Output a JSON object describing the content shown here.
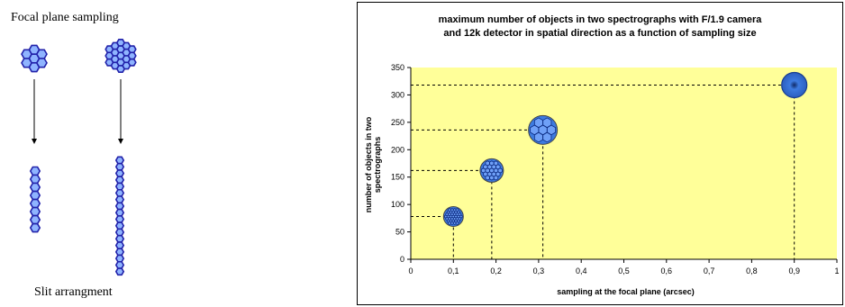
{
  "left_panel": {
    "title": "Focal plane sampling",
    "caption": "Slit arrangment"
  },
  "chart_data": {
    "type": "scatter",
    "title_lines": [
      "maximum number of objects in two spectrographs with F/1.9 camera",
      "and 12k detector in spatial direction as a function of sampling size"
    ],
    "xlabel": "sampling at the focal plane (arcsec)",
    "ylabel": "number of objects in two spectrographs",
    "xlim": [
      0,
      1
    ],
    "ylim": [
      0,
      350
    ],
    "x_ticks": [
      "0",
      "0,1",
      "0,2",
      "0,3",
      "0,4",
      "0,5",
      "0,6",
      "0,7",
      "0,8",
      "0,9",
      "1"
    ],
    "y_ticks": [
      "0",
      "50",
      "100",
      "150",
      "200",
      "250",
      "300",
      "350"
    ],
    "x_tick_values": [
      0,
      0.1,
      0.2,
      0.3,
      0.4,
      0.5,
      0.6,
      0.7,
      0.8,
      0.9,
      1
    ],
    "y_tick_values": [
      0,
      50,
      100,
      150,
      200,
      250,
      300,
      350
    ],
    "points": [
      {
        "x": 0.1,
        "y": 78
      },
      {
        "x": 0.19,
        "y": 162
      },
      {
        "x": 0.31,
        "y": 236
      },
      {
        "x": 0.9,
        "y": 318
      }
    ],
    "plot_background": "#FFFF99",
    "marker_color": "#3D7BE0",
    "grid": false,
    "guide_lines": "dashed"
  },
  "colors": {
    "hex_stroke": "#2222aa",
    "hex_fill": "#8fb4ff"
  }
}
